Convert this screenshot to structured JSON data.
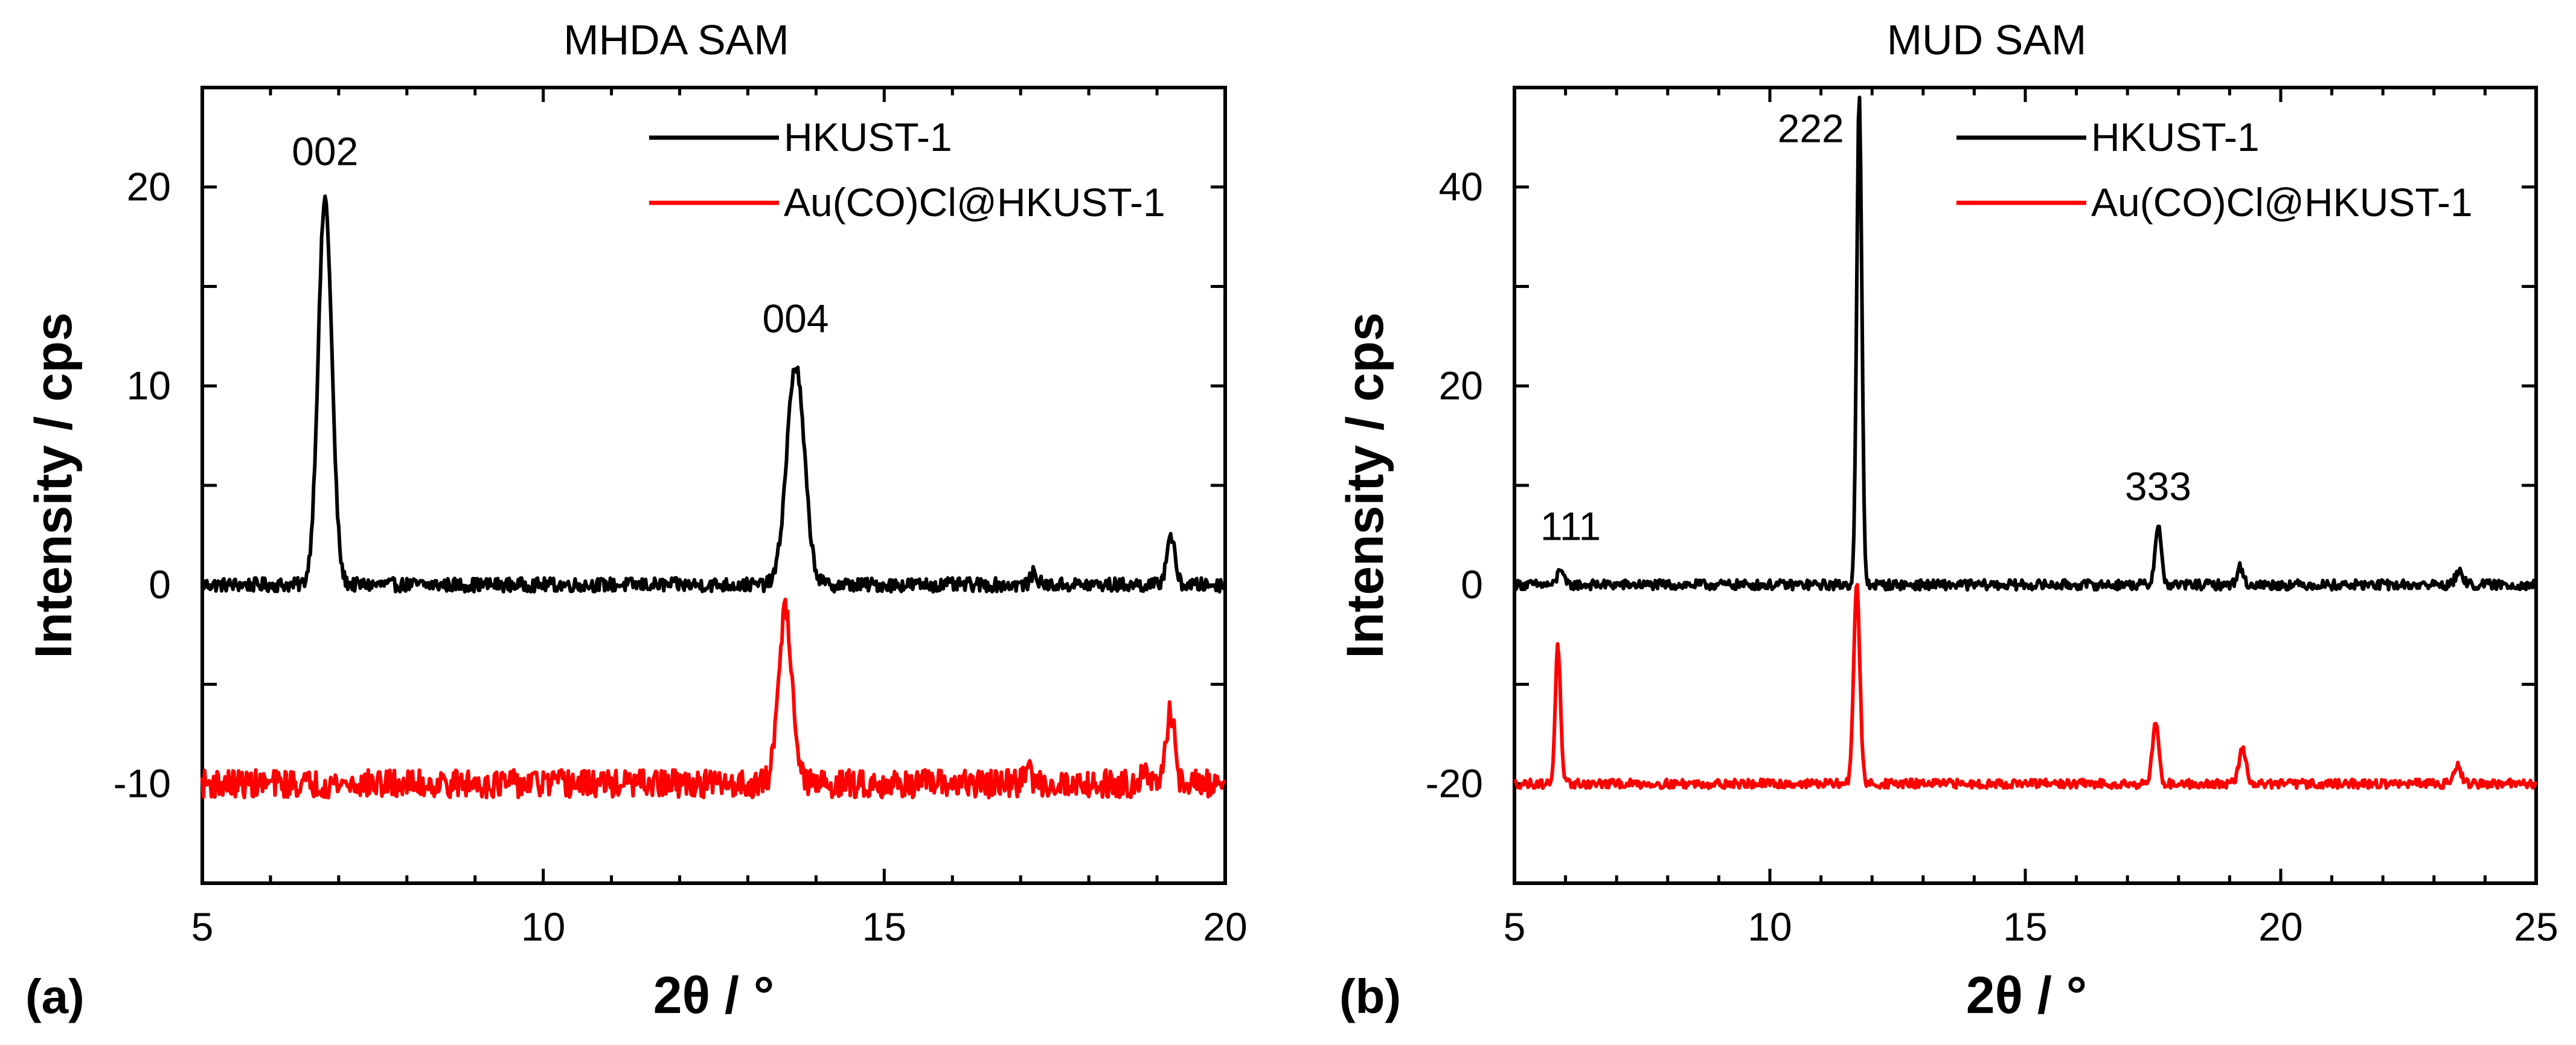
{
  "chart_data": [
    {
      "type": "line",
      "panel_label": "(a)",
      "title": "MHDA SAM",
      "xlabel": "2θ / °",
      "ylabel": "Intensity / cps",
      "xlim": [
        5,
        20
      ],
      "ylim": [
        -15,
        25
      ],
      "xticks": [
        5,
        10,
        15,
        20
      ],
      "yticks": [
        -10,
        0,
        10,
        20
      ],
      "legend_position": "top-right",
      "series": [
        {
          "name": "HKUST-1",
          "color": "#000000",
          "baseline": 0,
          "noise": 0.35,
          "peaks": [
            {
              "x": 6.8,
              "height": 19.4,
              "width": 0.1
            },
            {
              "x": 13.7,
              "height": 11.0,
              "width": 0.13
            },
            {
              "x": 17.2,
              "height": 0.6,
              "width": 0.05
            },
            {
              "x": 19.2,
              "height": 2.5,
              "width": 0.06
            }
          ]
        },
        {
          "name": "Au(CO)Cl@HKUST-1",
          "color": "#ff0000",
          "baseline": -10,
          "noise": 0.7,
          "peaks": [
            {
              "x": 13.55,
              "height": 8.8,
              "width": 0.1
            },
            {
              "x": 17.1,
              "height": 0.8,
              "width": 0.05
            },
            {
              "x": 18.8,
              "height": 0.8,
              "width": 0.05
            },
            {
              "x": 19.2,
              "height": 3.7,
              "width": 0.06
            }
          ]
        }
      ],
      "annotations": [
        {
          "text": "002",
          "x": 6.8,
          "y": 21.1
        },
        {
          "text": "004",
          "x": 13.7,
          "y": 12.7
        }
      ]
    },
    {
      "type": "line",
      "panel_label": "(b)",
      "title": "MUD SAM",
      "xlabel": "2θ / °",
      "ylabel": "Intensity / cps",
      "xlim": [
        5,
        25
      ],
      "ylim": [
        -30,
        50
      ],
      "xticks": [
        5,
        10,
        15,
        20,
        25
      ],
      "yticks": [
        -20,
        0,
        20,
        40
      ],
      "legend_position": "top-right",
      "series": [
        {
          "name": "HKUST-1",
          "color": "#000000",
          "baseline": 0,
          "noise": 0.5,
          "peaks": [
            {
              "x": 5.9,
              "height": 1.8,
              "width": 0.05
            },
            {
              "x": 11.75,
              "height": 49.0,
              "width": 0.05
            },
            {
              "x": 17.6,
              "height": 6.0,
              "width": 0.06
            },
            {
              "x": 19.2,
              "height": 1.8,
              "width": 0.06
            },
            {
              "x": 23.5,
              "height": 1.2,
              "width": 0.08
            }
          ]
        },
        {
          "name": "Au(CO)Cl@HKUST-1",
          "color": "#ff0000",
          "baseline": -20,
          "noise": 0.45,
          "peaks": [
            {
              "x": 5.85,
              "height": 14.0,
              "width": 0.05
            },
            {
              "x": 11.7,
              "height": 20.0,
              "width": 0.06
            },
            {
              "x": 17.55,
              "height": 6.3,
              "width": 0.06
            },
            {
              "x": 19.25,
              "height": 3.5,
              "width": 0.07
            },
            {
              "x": 23.45,
              "height": 1.8,
              "width": 0.08
            }
          ]
        }
      ],
      "annotations": [
        {
          "text": "111",
          "x": 6.1,
          "y": 4.5
        },
        {
          "text": "222",
          "x": 10.8,
          "y": 44.5
        },
        {
          "text": "333",
          "x": 17.6,
          "y": 8.5
        }
      ]
    }
  ]
}
